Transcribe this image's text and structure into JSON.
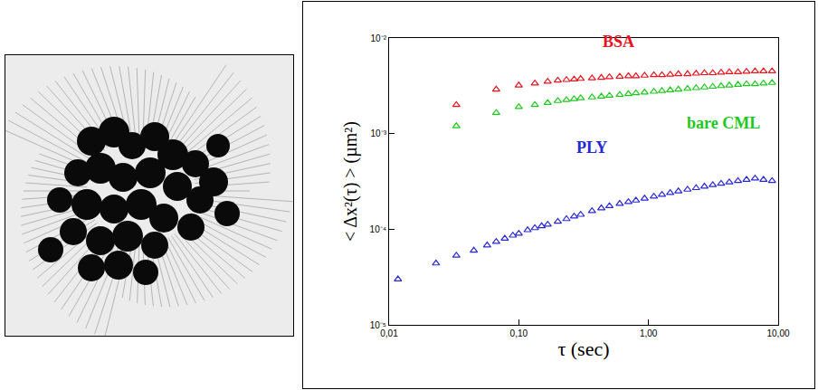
{
  "chart_data": {
    "type": "scatter",
    "log": true,
    "grid": false,
    "marker": "triangle-up-open",
    "xlabel": "τ (sec)",
    "ylabel": "< Δx²(τ) > (µm²)",
    "xlim": [
      0.01,
      10
    ],
    "ylim": [
      1e-05,
      0.01
    ],
    "xticks": [
      {
        "value": 0.01,
        "label": "0,01"
      },
      {
        "value": 0.1,
        "label": "0,10"
      },
      {
        "value": 1,
        "label": "1,00"
      },
      {
        "value": 10,
        "label": "10,00"
      }
    ],
    "yticks": [
      {
        "value": 1e-05,
        "label": "10⁻⁵"
      },
      {
        "value": 0.0001,
        "label": "10⁻⁴"
      },
      {
        "value": 0.001,
        "label": "10⁻³"
      },
      {
        "value": 0.01,
        "label": "10⁻²"
      }
    ],
    "series": [
      {
        "name": "BSA",
        "color": "#e8141e",
        "x": [
          0.033,
          0.067,
          0.1,
          0.133,
          0.167,
          0.2,
          0.233,
          0.267,
          0.3,
          0.367,
          0.433,
          0.5,
          0.6,
          0.7,
          0.8,
          0.933,
          1.1,
          1.27,
          1.47,
          1.7,
          2.0,
          2.33,
          2.7,
          3.13,
          3.63,
          4.2,
          4.9,
          5.7,
          6.63,
          7.7,
          8.97
        ],
        "values": [
          0.002,
          0.0029,
          0.0032,
          0.00335,
          0.0035,
          0.0036,
          0.00365,
          0.0037,
          0.00375,
          0.0038,
          0.00385,
          0.0039,
          0.00395,
          0.004,
          0.004,
          0.00405,
          0.0041,
          0.0041,
          0.00415,
          0.0042,
          0.0042,
          0.00425,
          0.0043,
          0.0043,
          0.00435,
          0.0044,
          0.0044,
          0.00445,
          0.0045,
          0.0045,
          0.0045
        ]
      },
      {
        "name": "bare CML",
        "color": "#1ec81e",
        "x": [
          0.033,
          0.067,
          0.1,
          0.133,
          0.167,
          0.2,
          0.233,
          0.267,
          0.3,
          0.367,
          0.433,
          0.5,
          0.6,
          0.7,
          0.8,
          0.933,
          1.1,
          1.27,
          1.47,
          1.7,
          2.0,
          2.33,
          2.7,
          3.13,
          3.63,
          4.2,
          4.9,
          5.7,
          6.63,
          7.7,
          8.97
        ],
        "values": [
          0.0012,
          0.00165,
          0.0019,
          0.002,
          0.0021,
          0.0022,
          0.00225,
          0.0023,
          0.00235,
          0.0024,
          0.00245,
          0.0025,
          0.00255,
          0.0026,
          0.00265,
          0.0027,
          0.00275,
          0.0028,
          0.00285,
          0.0029,
          0.00295,
          0.003,
          0.00305,
          0.0031,
          0.00315,
          0.0032,
          0.00325,
          0.0033,
          0.0033,
          0.00335,
          0.0034
        ]
      },
      {
        "name": "PLY",
        "color": "#2828d2",
        "x": [
          0.0117,
          0.023,
          0.033,
          0.045,
          0.057,
          0.067,
          0.078,
          0.09,
          0.1,
          0.117,
          0.133,
          0.15,
          0.167,
          0.2,
          0.233,
          0.267,
          0.3,
          0.367,
          0.433,
          0.5,
          0.6,
          0.7,
          0.8,
          0.933,
          1.1,
          1.27,
          1.47,
          1.7,
          2.0,
          2.33,
          2.7,
          3.13,
          3.63,
          4.2,
          4.9,
          5.7,
          6.63,
          7.7,
          8.97
        ],
        "values": [
          3e-05,
          4.4e-05,
          5.3e-05,
          6e-05,
          6.8e-05,
          7.4e-05,
          8e-05,
          8.6e-05,
          9e-05,
          9.8e-05,
          0.000103,
          0.000108,
          0.000112,
          0.00012,
          0.000128,
          0.000136,
          0.000142,
          0.000155,
          0.000166,
          0.000175,
          0.000185,
          0.000193,
          0.0002,
          0.00021,
          0.00022,
          0.00023,
          0.00024,
          0.00025,
          0.00026,
          0.00027,
          0.00028,
          0.00029,
          0.0003,
          0.00031,
          0.00032,
          0.00033,
          0.00034,
          0.00033,
          0.00032
        ]
      }
    ]
  }
}
